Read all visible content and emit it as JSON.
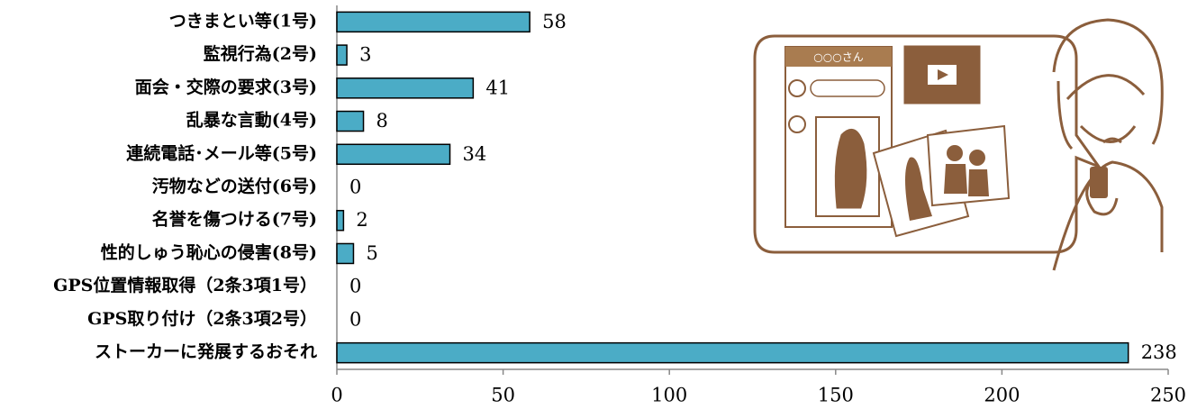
{
  "chart_data": {
    "type": "bar",
    "orientation": "horizontal",
    "categories": [
      "つきまとい等(1号)",
      "監視行為(2号)",
      "面会・交際の要求(3号)",
      "乱暴な言動(4号)",
      "連続電話･メール等(5号)",
      "汚物などの送付(6号)",
      "名誉を傷つける(7号)",
      "性的しゅう恥心の侵害(8号)",
      "GPS位置情報取得（2条3項1号）",
      "GPS取り付け（2条3項2号）",
      "ストーカーに発展するおそれ"
    ],
    "values": [
      58,
      3,
      41,
      8,
      34,
      0,
      2,
      5,
      0,
      0,
      238
    ],
    "color": "#4bacc6",
    "xlim": [
      0,
      250
    ],
    "xticks": [
      0,
      50,
      100,
      150,
      200,
      250
    ],
    "grid": false
  },
  "illustration": {
    "caption": "○○○さん"
  }
}
